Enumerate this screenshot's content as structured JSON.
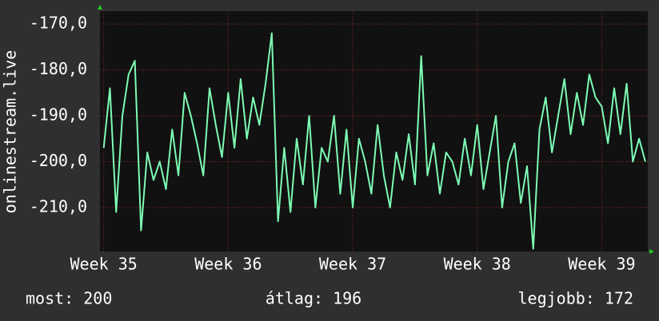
{
  "chart_data": {
    "type": "line",
    "y_label": "onlinestream.live",
    "color": "#7dfcb4",
    "grid": true,
    "xlim": [
      34.97,
      39.37
    ],
    "xticks": [
      {
        "value": 35,
        "label": "Week 35"
      },
      {
        "value": 36,
        "label": "Week 36"
      },
      {
        "value": 37,
        "label": "Week 37"
      },
      {
        "value": 38,
        "label": "Week 38"
      },
      {
        "value": 39,
        "label": "Week 39"
      }
    ],
    "ylim": [
      -219.6,
      -167.2
    ],
    "yticks": [
      {
        "value": -170,
        "label": "-170,0"
      },
      {
        "value": -180,
        "label": "-180,0"
      },
      {
        "value": -190,
        "label": "-190,0"
      },
      {
        "value": -200,
        "label": "-200,0"
      },
      {
        "value": -210,
        "label": "-210,0"
      }
    ],
    "x": [
      35,
      35.05,
      35.1,
      35.15,
      35.2,
      35.25,
      35.3,
      35.35,
      35.4,
      35.45,
      35.5,
      35.55,
      35.6,
      35.65,
      35.7,
      35.75,
      35.8,
      35.85,
      35.9,
      35.95,
      36,
      36.05,
      36.1,
      36.15,
      36.2,
      36.25,
      36.3,
      36.35,
      36.4,
      36.45,
      36.5,
      36.55,
      36.6,
      36.65,
      36.7,
      36.75,
      36.8,
      36.85,
      36.9,
      36.95,
      37,
      37.05,
      37.1,
      37.15,
      37.2,
      37.25,
      37.3,
      37.35,
      37.4,
      37.45,
      37.5,
      37.55,
      37.6,
      37.65,
      37.7,
      37.75,
      37.8,
      37.85,
      37.9,
      37.95,
      38,
      38.05,
      38.1,
      38.15,
      38.2,
      38.25,
      38.3,
      38.35,
      38.4,
      38.45,
      38.5,
      38.55,
      38.6,
      38.65,
      38.7,
      38.75,
      38.8,
      38.85,
      38.9,
      38.95,
      39,
      39.05,
      39.1,
      39.15,
      39.2,
      39.25,
      39.3,
      39.35
    ],
    "values": [
      -197,
      -184,
      -211,
      -190,
      -181,
      -178,
      -215,
      -198,
      -204,
      -200,
      -206,
      -193,
      -203,
      -185,
      -190,
      -196,
      -203,
      -184,
      -192,
      -199,
      -185,
      -197,
      -182,
      -195,
      -186,
      -192,
      -183,
      -172,
      -213,
      -197,
      -211,
      -195,
      -205,
      -190,
      -210,
      -197,
      -200,
      -190,
      -207,
      -193,
      -210,
      -195,
      -200,
      -207,
      -192,
      -203,
      -210,
      -198,
      -204,
      -194,
      -205,
      -177,
      -203,
      -196,
      -207,
      -198,
      -200,
      -205,
      -195,
      -203,
      -192,
      -206,
      -198,
      -190,
      -210,
      -200,
      -196,
      -209,
      -201,
      -219,
      -193,
      -186,
      -198,
      -190,
      -182,
      -194,
      -185,
      -192,
      -181,
      -186,
      -188,
      -196,
      -184,
      -194,
      -183,
      -200,
      -195,
      -200
    ],
    "annotations": [
      "most: 200",
      "átlag: 196",
      "legjobb: 172"
    ]
  }
}
